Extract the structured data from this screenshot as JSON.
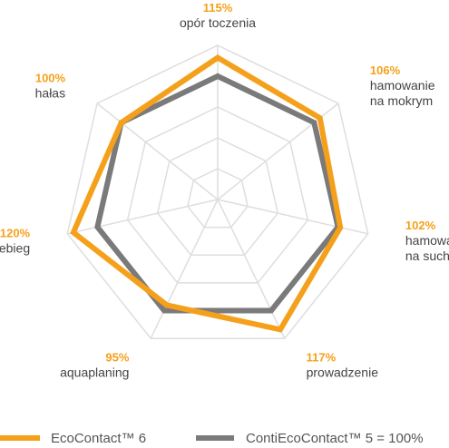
{
  "chart_data": {
    "type": "radar",
    "axes": [
      {
        "value_label": "115%",
        "name_lines": [
          "opór toczenia"
        ]
      },
      {
        "value_label": "106%",
        "name_lines": [
          "hamowanie",
          "na mokrym"
        ]
      },
      {
        "value_label": "102%",
        "name_lines": [
          "hamowanie",
          "na suchym"
        ]
      },
      {
        "value_label": "117%",
        "name_lines": [
          "prowadzenie"
        ]
      },
      {
        "value_label": "95%",
        "name_lines": [
          "aquaplaning"
        ]
      },
      {
        "value_label": "120%",
        "name_lines": [
          "przebieg"
        ]
      },
      {
        "value_label": "100%",
        "name_lines": [
          "hałas"
        ]
      }
    ],
    "series": [
      {
        "name": "EcoContact™ 6",
        "color": "#f5a01a",
        "values": [
          115,
          106,
          102,
          117,
          95,
          120,
          100
        ]
      },
      {
        "name": "ContiEcoContact™ 5 = 100%",
        "color": "#7a7a7a",
        "values": [
          100,
          100,
          100,
          100,
          100,
          100,
          100
        ]
      }
    ],
    "grid": true,
    "legend": "bottom"
  }
}
